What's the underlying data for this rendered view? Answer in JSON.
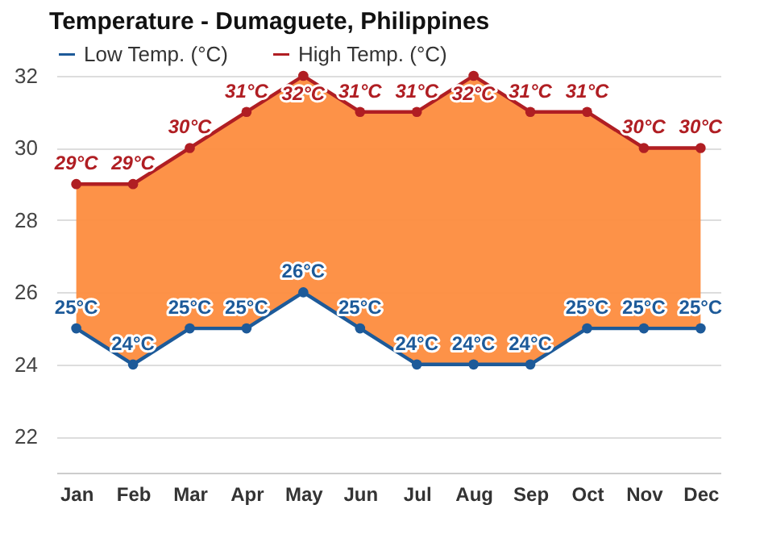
{
  "chart_data": {
    "type": "line",
    "title": "Temperature - Dumaguete, Philippines",
    "categories": [
      "Jan",
      "Feb",
      "Mar",
      "Apr",
      "May",
      "Jun",
      "Jul",
      "Aug",
      "Sep",
      "Oct",
      "Nov",
      "Dec"
    ],
    "series": [
      {
        "name": "Low Temp. (°C)",
        "color": "#1d5a99",
        "values": [
          25,
          24,
          25,
          25,
          26,
          25,
          24,
          24,
          24,
          25,
          25,
          25
        ],
        "value_labels": [
          "25°C",
          "24°C",
          "25°C",
          "25°C",
          "26°C",
          "25°C",
          "24°C",
          "24°C",
          "24°C",
          "25°C",
          "25°C",
          "25°C"
        ]
      },
      {
        "name": "High Temp. (°C)",
        "type": "area",
        "color": "#b01e23",
        "values": [
          29,
          29,
          30,
          31,
          32,
          31,
          31,
          32,
          31,
          31,
          30,
          30
        ],
        "value_labels": [
          "29°C",
          "29°C",
          "30°C",
          "31°C",
          "32°C",
          "31°C",
          "31°C",
          "32°C",
          "31°C",
          "31°C",
          "30°C",
          "30°C"
        ]
      }
    ],
    "ylim": [
      21,
      32
    ],
    "yticks": [
      22,
      24,
      26,
      28,
      30,
      32
    ],
    "grid": "y",
    "legend": "top left",
    "marker": "circle",
    "line_style": "solid"
  }
}
